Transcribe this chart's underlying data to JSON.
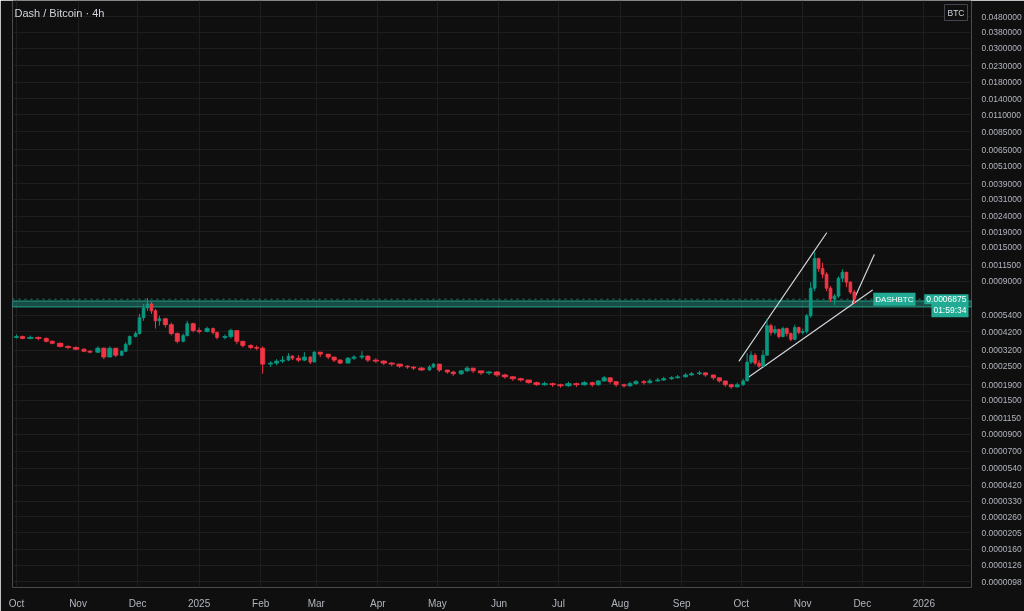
{
  "chart_data": {
    "type": "candlestick",
    "title": "Dash / Bitcoin · 4h",
    "ylabel": "BTC",
    "x": [
      "2024-10-01",
      "2024-10-04",
      "2024-10-08",
      "2024-10-12",
      "2024-10-16",
      "2024-10-19",
      "2024-10-23",
      "2024-10-27",
      "2024-10-31",
      "2024-11-04",
      "2024-11-07",
      "2024-11-11",
      "2024-11-14",
      "2024-11-17",
      "2024-11-20",
      "2024-11-23",
      "2024-11-25",
      "2024-11-27",
      "2024-11-30",
      "2024-12-02",
      "2024-12-04",
      "2024-12-06",
      "2024-12-08",
      "2024-12-10",
      "2024-12-12",
      "2024-12-15",
      "2024-12-18",
      "2024-12-21",
      "2024-12-24",
      "2024-12-26",
      "2024-12-29",
      "2025-01-01",
      "2025-01-05",
      "2025-01-08",
      "2025-01-10",
      "2025-01-14",
      "2025-01-17",
      "2025-01-20",
      "2025-01-23",
      "2025-01-27",
      "2025-01-30",
      "2025-02-02",
      "2025-02-06",
      "2025-02-09",
      "2025-02-12",
      "2025-02-15",
      "2025-02-17",
      "2025-02-20",
      "2025-02-23",
      "2025-02-26",
      "2025-02-28",
      "2025-03-03",
      "2025-03-07",
      "2025-03-10",
      "2025-03-13",
      "2025-03-17",
      "2025-03-20",
      "2025-03-24",
      "2025-03-27",
      "2025-03-31",
      "2025-04-04",
      "2025-04-08",
      "2025-04-12",
      "2025-04-16",
      "2025-04-19",
      "2025-04-23",
      "2025-04-27",
      "2025-04-29",
      "2025-05-02",
      "2025-05-06",
      "2025-05-09",
      "2025-05-13",
      "2025-05-16",
      "2025-05-19",
      "2025-05-23",
      "2025-05-27",
      "2025-05-31",
      "2025-06-04",
      "2025-06-08",
      "2025-06-12",
      "2025-06-16",
      "2025-06-20",
      "2025-06-24",
      "2025-06-28",
      "2025-07-02",
      "2025-07-06",
      "2025-07-10",
      "2025-07-14",
      "2025-07-18",
      "2025-07-21",
      "2025-07-24",
      "2025-07-27",
      "2025-07-30",
      "2025-08-03",
      "2025-08-06",
      "2025-08-09",
      "2025-08-13",
      "2025-08-16",
      "2025-08-20",
      "2025-08-23",
      "2025-08-27",
      "2025-08-30",
      "2025-09-03",
      "2025-09-06",
      "2025-09-10",
      "2025-09-13",
      "2025-09-17",
      "2025-09-20",
      "2025-09-23",
      "2025-09-26",
      "2025-09-29",
      "2025-10-02",
      "2025-10-04",
      "2025-10-06",
      "2025-10-08",
      "2025-10-10",
      "2025-10-12",
      "2025-10-14",
      "2025-10-16",
      "2025-10-18",
      "2025-10-20",
      "2025-10-22",
      "2025-10-24",
      "2025-10-26",
      "2025-10-28",
      "2025-10-30",
      "2025-11-01",
      "2025-11-03",
      "2025-11-05",
      "2025-11-07",
      "2025-11-09",
      "2025-11-11",
      "2025-11-13",
      "2025-11-15",
      "2025-11-17",
      "2025-11-19",
      "2025-11-21",
      "2025-11-23",
      "2025-11-25",
      "2025-11-27"
    ],
    "ohlc": [
      [
        0.000387,
        0.000404,
        0.000381,
        0.000392
      ],
      [
        0.000392,
        0.000398,
        0.000376,
        0.000381
      ],
      [
        0.000381,
        0.000398,
        0.000376,
        0.000387
      ],
      [
        0.000387,
        0.000392,
        0.00037,
        0.000381
      ],
      [
        0.000381,
        0.000387,
        0.000359,
        0.000365
      ],
      [
        0.000365,
        0.00037,
        0.000349,
        0.000354
      ],
      [
        0.000354,
        0.000359,
        0.000333,
        0.000338
      ],
      [
        0.000338,
        0.000343,
        0.000324,
        0.000333
      ],
      [
        0.000333,
        0.000338,
        0.000319,
        0.000324
      ],
      [
        0.000324,
        0.000329,
        0.00031,
        0.000314
      ],
      [
        0.000314,
        0.000319,
        0.000305,
        0.00031
      ],
      [
        0.00031,
        0.000338,
        0.000305,
        0.000329
      ],
      [
        0.000329,
        0.000333,
        0.000279,
        0.000288
      ],
      [
        0.000288,
        0.000338,
        0.000288,
        0.000329
      ],
      [
        0.000329,
        0.000329,
        0.000288,
        0.000296
      ],
      [
        0.000296,
        0.000319,
        0.000292,
        0.000314
      ],
      [
        0.000314,
        0.000359,
        0.00031,
        0.000349
      ],
      [
        0.000349,
        0.000398,
        0.000343,
        0.000392
      ],
      [
        0.000392,
        0.000423,
        0.000387,
        0.00041
      ],
      [
        0.00041,
        0.000552,
        0.000404,
        0.00052
      ],
      [
        0.00052,
        0.00064,
        0.000497,
        0.000603
      ],
      [
        0.000603,
        0.000699,
        0.000577,
        0.00064
      ],
      [
        0.00064,
        0.000659,
        0.000552,
        0.000577
      ],
      [
        0.000577,
        0.000594,
        0.000442,
        0.000497
      ],
      [
        0.000497,
        0.000536,
        0.000462,
        0.000512
      ],
      [
        0.000512,
        0.00052,
        0.000449,
        0.000469
      ],
      [
        0.000469,
        0.000483,
        0.000398,
        0.00041
      ],
      [
        0.00041,
        0.000417,
        0.000354,
        0.000365
      ],
      [
        0.000365,
        0.00041,
        0.000359,
        0.000398
      ],
      [
        0.000398,
        0.000497,
        0.000392,
        0.000476
      ],
      [
        0.000476,
        0.000483,
        0.000417,
        0.000429
      ],
      [
        0.000429,
        0.000449,
        0.00041,
        0.000423
      ],
      [
        0.000423,
        0.000455,
        0.000417,
        0.000442
      ],
      [
        0.000442,
        0.000449,
        0.000404,
        0.000417
      ],
      [
        0.000417,
        0.000423,
        0.000376,
        0.000387
      ],
      [
        0.000387,
        0.000404,
        0.000376,
        0.000392
      ],
      [
        0.000392,
        0.000442,
        0.000381,
        0.000429
      ],
      [
        0.000429,
        0.000429,
        0.000349,
        0.000365
      ],
      [
        0.000365,
        0.000365,
        0.000333,
        0.000343
      ],
      [
        0.000343,
        0.000349,
        0.000324,
        0.000333
      ],
      [
        0.000333,
        0.000343,
        0.000319,
        0.000329
      ],
      [
        0.000329,
        0.000338,
        0.000224,
        0.000259
      ],
      [
        0.000259,
        0.000271,
        0.000248,
        0.000263
      ],
      [
        0.000263,
        0.000279,
        0.000255,
        0.000271
      ],
      [
        0.000271,
        0.000292,
        0.000263,
        0.000275
      ],
      [
        0.000275,
        0.000305,
        0.000271,
        0.000292
      ],
      [
        0.000292,
        0.000296,
        0.000275,
        0.000283
      ],
      [
        0.000283,
        0.000296,
        0.000267,
        0.000275
      ],
      [
        0.000275,
        0.00031,
        0.000271,
        0.000288
      ],
      [
        0.000288,
        0.000292,
        0.000259,
        0.000267
      ],
      [
        0.000267,
        0.000314,
        0.000267,
        0.00031
      ],
      [
        0.00031,
        0.00031,
        0.000288,
        0.000301
      ],
      [
        0.000301,
        0.000301,
        0.000279,
        0.000288
      ],
      [
        0.000288,
        0.000288,
        0.000267,
        0.000275
      ],
      [
        0.000275,
        0.000279,
        0.000259,
        0.000263
      ],
      [
        0.000263,
        0.000288,
        0.000263,
        0.000283
      ],
      [
        0.000283,
        0.000296,
        0.000275,
        0.000288
      ],
      [
        0.000288,
        0.000314,
        0.000279,
        0.000292
      ],
      [
        0.000292,
        0.000296,
        0.000267,
        0.000275
      ],
      [
        0.000275,
        0.000283,
        0.000263,
        0.000271
      ],
      [
        0.000271,
        0.000275,
        0.000255,
        0.000263
      ],
      [
        0.000263,
        0.000267,
        0.000251,
        0.000259
      ],
      [
        0.000259,
        0.000259,
        0.000244,
        0.000251
      ],
      [
        0.000251,
        0.000255,
        0.000241,
        0.000248
      ],
      [
        0.000248,
        0.000251,
        0.000237,
        0.000244
      ],
      [
        0.000244,
        0.000248,
        0.000234,
        0.000237
      ],
      [
        0.000237,
        0.000255,
        0.000234,
        0.000248
      ],
      [
        0.000248,
        0.000263,
        0.000244,
        0.000259
      ],
      [
        0.000259,
        0.000259,
        0.00023,
        0.000237
      ],
      [
        0.000237,
        0.000237,
        0.000224,
        0.00023
      ],
      [
        0.00023,
        0.000234,
        0.000217,
        0.000224
      ],
      [
        0.000224,
        0.000237,
        0.00022,
        0.000234
      ],
      [
        0.000234,
        0.000251,
        0.00023,
        0.000244
      ],
      [
        0.000244,
        0.000244,
        0.000227,
        0.000234
      ],
      [
        0.000234,
        0.000234,
        0.00022,
        0.000227
      ],
      [
        0.000227,
        0.000234,
        0.00022,
        0.00023
      ],
      [
        0.00023,
        0.000234,
        0.000214,
        0.00022
      ],
      [
        0.00022,
        0.000224,
        0.000208,
        0.000214
      ],
      [
        0.000214,
        0.000217,
        0.000201,
        0.000208
      ],
      [
        0.000208,
        0.000211,
        0.000199,
        0.000204
      ],
      [
        0.000204,
        0.000204,
        0.000193,
        0.000196
      ],
      [
        0.000196,
        0.000199,
        0.000187,
        0.00019
      ],
      [
        0.00019,
        0.000199,
        0.000187,
        0.000193
      ],
      [
        0.000193,
        0.000196,
        0.000184,
        0.00019
      ],
      [
        0.00019,
        0.000193,
        0.000182,
        0.000187
      ],
      [
        0.000187,
        0.000199,
        0.000184,
        0.000193
      ],
      [
        0.000193,
        0.000196,
        0.000184,
        0.00019
      ],
      [
        0.00019,
        0.000201,
        0.000187,
        0.000196
      ],
      [
        0.000196,
        0.000199,
        0.000184,
        0.00019
      ],
      [
        0.00019,
        0.000204,
        0.000187,
        0.000201
      ],
      [
        0.000201,
        0.000217,
        0.000199,
        0.000211
      ],
      [
        0.000211,
        0.000211,
        0.000193,
        0.000199
      ],
      [
        0.000199,
        0.000201,
        0.000184,
        0.00019
      ],
      [
        0.00019,
        0.000193,
        0.000182,
        0.000187
      ],
      [
        0.000187,
        0.000199,
        0.000184,
        0.000193
      ],
      [
        0.000193,
        0.000204,
        0.00019,
        0.000199
      ],
      [
        0.000199,
        0.000204,
        0.00019,
        0.000196
      ],
      [
        0.000196,
        0.000208,
        0.000193,
        0.000201
      ],
      [
        0.000201,
        0.000211,
        0.000199,
        0.000204
      ],
      [
        0.000204,
        0.000214,
        0.000201,
        0.000208
      ],
      [
        0.000208,
        0.000217,
        0.000204,
        0.000211
      ],
      [
        0.000211,
        0.00022,
        0.000208,
        0.000214
      ],
      [
        0.000214,
        0.000227,
        0.000211,
        0.00022
      ],
      [
        0.00022,
        0.00023,
        0.000217,
        0.000224
      ],
      [
        0.000224,
        0.000234,
        0.00022,
        0.000227
      ],
      [
        0.000227,
        0.00023,
        0.000214,
        0.00022
      ],
      [
        0.00022,
        0.00022,
        0.000204,
        0.000211
      ],
      [
        0.000211,
        0.000211,
        0.000196,
        0.000201
      ],
      [
        0.000201,
        0.000201,
        0.000184,
        0.00019
      ],
      [
        0.00019,
        0.000193,
        0.000179,
        0.000184
      ],
      [
        0.000184,
        0.000196,
        0.000182,
        0.00019
      ],
      [
        0.00019,
        0.000208,
        0.000187,
        0.000201
      ],
      [
        0.000201,
        0.000305,
        0.000201,
        0.000267
      ],
      [
        0.000267,
        0.000314,
        0.000259,
        0.000296
      ],
      [
        0.000296,
        0.000305,
        0.000255,
        0.000263
      ],
      [
        0.000263,
        0.000275,
        0.000244,
        0.000251
      ],
      [
        0.000251,
        0.000319,
        0.000248,
        0.000296
      ],
      [
        0.000296,
        0.000512,
        0.000296,
        0.000462
      ],
      [
        0.000462,
        0.000476,
        0.000398,
        0.000417
      ],
      [
        0.000417,
        0.000462,
        0.000404,
        0.000436
      ],
      [
        0.000436,
        0.000442,
        0.000381,
        0.000392
      ],
      [
        0.000392,
        0.000455,
        0.000387,
        0.000442
      ],
      [
        0.000442,
        0.000449,
        0.000392,
        0.00041
      ],
      [
        0.00041,
        0.000417,
        0.000365,
        0.000376
      ],
      [
        0.000376,
        0.000469,
        0.00037,
        0.000449
      ],
      [
        0.000449,
        0.000455,
        0.000404,
        0.000417
      ],
      [
        0.000417,
        0.000442,
        0.000404,
        0.000423
      ],
      [
        0.000423,
        0.000552,
        0.00041,
        0.000536
      ],
      [
        0.000536,
        0.000887,
        0.00052,
        0.000811
      ],
      [
        0.000811,
        0.0014,
        0.000776,
        0.00127
      ],
      [
        0.00127,
        0.00127,
        0.00104,
        0.00109
      ],
      [
        0.00109,
        0.00119,
        0.000941,
        0.001
      ],
      [
        0.001,
        0.00103,
        0.000776,
        0.000811
      ],
      [
        0.000811,
        0.000836,
        0.000659,
        0.000689
      ],
      [
        0.000689,
        0.000742,
        0.000631,
        0.000721
      ],
      [
        0.000721,
        0.000969,
        0.000699,
        0.000941
      ],
      [
        0.000941,
        0.00108,
        0.000887,
        0.00103
      ],
      [
        0.00103,
        0.00104,
        0.000824,
        0.000887
      ],
      [
        0.000887,
        0.0009,
        0.000742,
        0.000765
      ],
      [
        0.000765,
        0.000788,
        0.00064,
        0.000689
      ]
    ],
    "colors": [
      "#089981",
      "#f23645",
      "#089981",
      "#f23645",
      "#f23645",
      "#f23645",
      "#f23645",
      "#f23645",
      "#f23645",
      "#f23645",
      "#f23645",
      "#089981",
      "#f23645",
      "#089981",
      "#f23645",
      "#089981",
      "#089981",
      "#089981",
      "#089981",
      "#089981",
      "#089981",
      "#089981",
      "#f23645",
      "#f23645",
      "#089981",
      "#f23645",
      "#f23645",
      "#f23645",
      "#089981",
      "#089981",
      "#f23645",
      "#f23645",
      "#089981",
      "#f23645",
      "#f23645",
      "#089981",
      "#089981",
      "#f23645",
      "#f23645",
      "#f23645",
      "#f23645",
      "#f23645",
      "#089981",
      "#089981",
      "#089981",
      "#089981",
      "#f23645",
      "#f23645",
      "#089981",
      "#f23645",
      "#089981",
      "#f23645",
      "#f23645",
      "#f23645",
      "#f23645",
      "#089981",
      "#089981",
      "#089981",
      "#f23645",
      "#f23645",
      "#f23645",
      "#f23645",
      "#f23645",
      "#f23645",
      "#f23645",
      "#f23645",
      "#089981",
      "#089981",
      "#f23645",
      "#f23645",
      "#f23645",
      "#089981",
      "#089981",
      "#f23645",
      "#f23645",
      "#089981",
      "#f23645",
      "#f23645",
      "#f23645",
      "#f23645",
      "#f23645",
      "#f23645",
      "#089981",
      "#f23645",
      "#f23645",
      "#089981",
      "#f23645",
      "#089981",
      "#f23645",
      "#089981",
      "#089981",
      "#f23645",
      "#f23645",
      "#f23645",
      "#089981",
      "#089981",
      "#f23645",
      "#089981",
      "#089981",
      "#089981",
      "#089981",
      "#089981",
      "#089981",
      "#089981",
      "#089981",
      "#f23645",
      "#f23645",
      "#f23645",
      "#f23645",
      "#f23645",
      "#089981",
      "#089981",
      "#089981",
      "#089981",
      "#f23645",
      "#f23645",
      "#089981",
      "#089981",
      "#f23645",
      "#089981",
      "#f23645",
      "#089981",
      "#f23645",
      "#f23645",
      "#089981",
      "#f23645",
      "#089981",
      "#089981",
      "#089981",
      "#089981",
      "#f23645",
      "#f23645",
      "#f23645",
      "#f23645",
      "#089981",
      "#089981",
      "#089981",
      "#f23645",
      "#f23645",
      "#f23645"
    ],
    "series": [
      {
        "type": "line",
        "color": "#d1d4dc",
        "x": [
          "2025-09-30",
          "2025-11-13"
        ],
        "values": [
          0.000272,
          0.00186
        ]
      },
      {
        "type": "line",
        "color": "#d1d4dc",
        "x": [
          "2025-10-05",
          "2025-12-06"
        ],
        "values": [
          0.000214,
          0.000787
        ]
      },
      {
        "type": "line",
        "color": "#d1d4dc",
        "x": [
          "2025-11-26",
          "2025-12-07"
        ],
        "values": [
          0.00065,
          0.00134
        ]
      }
    ],
    "bands": [
      {
        "axis": "y",
        "from": 0.000612,
        "to": 0.000669,
        "color": "#22ab94"
      }
    ],
    "ref_lines": [
      {
        "axis": "y",
        "value": 0.0006875,
        "label": "0.0006875\n01:59:34",
        "color": "#22ab94",
        "line_style": "dotted"
      }
    ],
    "annotations": [
      "DASHBTC"
    ],
    "log": true,
    "grid": true,
    "xlim": [
      "2024-09-29",
      "2026-01-25"
    ],
    "xticks": [
      {
        "value": "2024-10-01",
        "label": "Oct"
      },
      {
        "value": "2024-11-01",
        "label": "Nov"
      },
      {
        "value": "2024-12-01",
        "label": "Dec"
      },
      {
        "value": "2025-01-01",
        "label": "2025"
      },
      {
        "value": "2025-02-01",
        "label": "Feb"
      },
      {
        "value": "2025-03-01",
        "label": "Mar"
      },
      {
        "value": "2025-04-01",
        "label": "Apr"
      },
      {
        "value": "2025-05-01",
        "label": "May"
      },
      {
        "value": "2025-06-01",
        "label": "Jun"
      },
      {
        "value": "2025-07-01",
        "label": "Jul"
      },
      {
        "value": "2025-08-01",
        "label": "Aug"
      },
      {
        "value": "2025-09-01",
        "label": "Sep"
      },
      {
        "value": "2025-10-01",
        "label": "Oct"
      },
      {
        "value": "2025-11-01",
        "label": "Nov"
      },
      {
        "value": "2025-12-01",
        "label": "Dec"
      },
      {
        "value": "2026-01-01",
        "label": "2026"
      }
    ],
    "ylim": [
      9e-06,
      0.0614
    ],
    "yticks": [
      {
        "value": 0.048,
        "label": "0.0480000"
      },
      {
        "value": 0.038,
        "label": "0.0380000"
      },
      {
        "value": 0.03,
        "label": "0.0300000"
      },
      {
        "value": 0.023,
        "label": "0.0230000"
      },
      {
        "value": 0.018,
        "label": "0.0180000"
      },
      {
        "value": 0.014,
        "label": "0.0140000"
      },
      {
        "value": 0.011,
        "label": "0.0110000"
      },
      {
        "value": 0.0085,
        "label": "0.0085000"
      },
      {
        "value": 0.0065,
        "label": "0.0065000"
      },
      {
        "value": 0.0051,
        "label": "0.0051000"
      },
      {
        "value": 0.0039,
        "label": "0.0039000"
      },
      {
        "value": 0.0031,
        "label": "0.0031000"
      },
      {
        "value": 0.0024,
        "label": "0.0024000"
      },
      {
        "value": 0.0019,
        "label": "0.0019000"
      },
      {
        "value": 0.0015,
        "label": "0.0015000"
      },
      {
        "value": 0.00115,
        "label": "0.0011500"
      },
      {
        "value": 0.0009,
        "label": "0.0009000"
      },
      {
        "value": 0.00054,
        "label": "0.0005400"
      },
      {
        "value": 0.00042,
        "label": "0.0004200"
      },
      {
        "value": 0.00032,
        "label": "0.0003200"
      },
      {
        "value": 0.00025,
        "label": "0.0002500"
      },
      {
        "value": 0.00019,
        "label": "0.0001900"
      },
      {
        "value": 0.00015,
        "label": "0.0001500"
      },
      {
        "value": 0.000115,
        "label": "0.0001150"
      },
      {
        "value": 9e-05,
        "label": "0.0000900"
      },
      {
        "value": 7e-05,
        "label": "0.0000700"
      },
      {
        "value": 5.4e-05,
        "label": "0.0000540"
      },
      {
        "value": 4.2e-05,
        "label": "0.0000420"
      },
      {
        "value": 3.3e-05,
        "label": "0.0000330"
      },
      {
        "value": 2.6e-05,
        "label": "0.0000260"
      },
      {
        "value": 2.05e-05,
        "label": "0.0000205"
      },
      {
        "value": 1.6e-05,
        "label": "0.0000160"
      },
      {
        "value": 1.26e-05,
        "label": "0.0000126"
      },
      {
        "value": 9.8e-06,
        "label": "0.0000098"
      }
    ]
  }
}
